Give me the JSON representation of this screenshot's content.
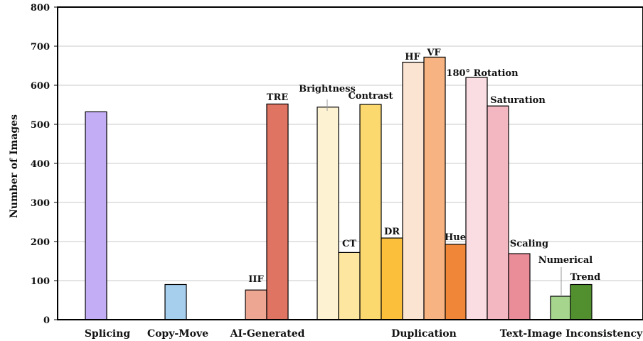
{
  "chart_data": {
    "type": "bar",
    "title": "",
    "xlabel": "",
    "ylabel": "Number of Images",
    "ylim": [
      0,
      800
    ],
    "yticks": [
      0,
      100,
      200,
      300,
      400,
      500,
      600,
      700,
      800
    ],
    "grid": "horizontal",
    "categories": [
      "Splicing",
      "Copy-Move",
      "AI-Generated",
      "Duplication",
      "Text-Image Inconsistency"
    ],
    "bars": [
      {
        "category": "Splicing",
        "label": "",
        "value": 532,
        "color": "#c3adf5"
      },
      {
        "category": "Copy-Move",
        "label": "",
        "value": 90,
        "color": "#a6cfee"
      },
      {
        "category": "AI-Generated",
        "label": "IIF",
        "value": 76,
        "color": "#eda692"
      },
      {
        "category": "AI-Generated",
        "label": "TRE",
        "value": 552,
        "color": "#e07463"
      },
      {
        "category": "Duplication",
        "label": "Brightness",
        "value": 544,
        "color": "#fdf2d2"
      },
      {
        "category": "Duplication",
        "label": "CT",
        "value": 172,
        "color": "#fde6a0"
      },
      {
        "category": "Duplication",
        "label": "Contrast",
        "value": 551,
        "color": "#fbd96f"
      },
      {
        "category": "Duplication",
        "label": "DR",
        "value": 209,
        "color": "#fbbf3c"
      },
      {
        "category": "Duplication",
        "label": "HF",
        "value": 659,
        "color": "#fce4d3"
      },
      {
        "category": "Duplication",
        "label": "VF",
        "value": 672,
        "color": "#f7b482"
      },
      {
        "category": "Duplication",
        "label": "Hue",
        "value": 193,
        "color": "#f08638"
      },
      {
        "category": "Duplication",
        "label": "180° Rotation",
        "value": 620,
        "color": "#f9dde2"
      },
      {
        "category": "Duplication",
        "label": "Saturation",
        "value": 547,
        "color": "#f2b7c1"
      },
      {
        "category": "Duplication",
        "label": "Scaling",
        "value": 169,
        "color": "#eb8c99"
      },
      {
        "category": "Text-Image Inconsistency",
        "label": "Numerical",
        "value": 60,
        "color": "#a6d68d"
      },
      {
        "category": "Text-Image Inconsistency",
        "label": "Trend",
        "value": 90,
        "color": "#52902f"
      }
    ]
  }
}
